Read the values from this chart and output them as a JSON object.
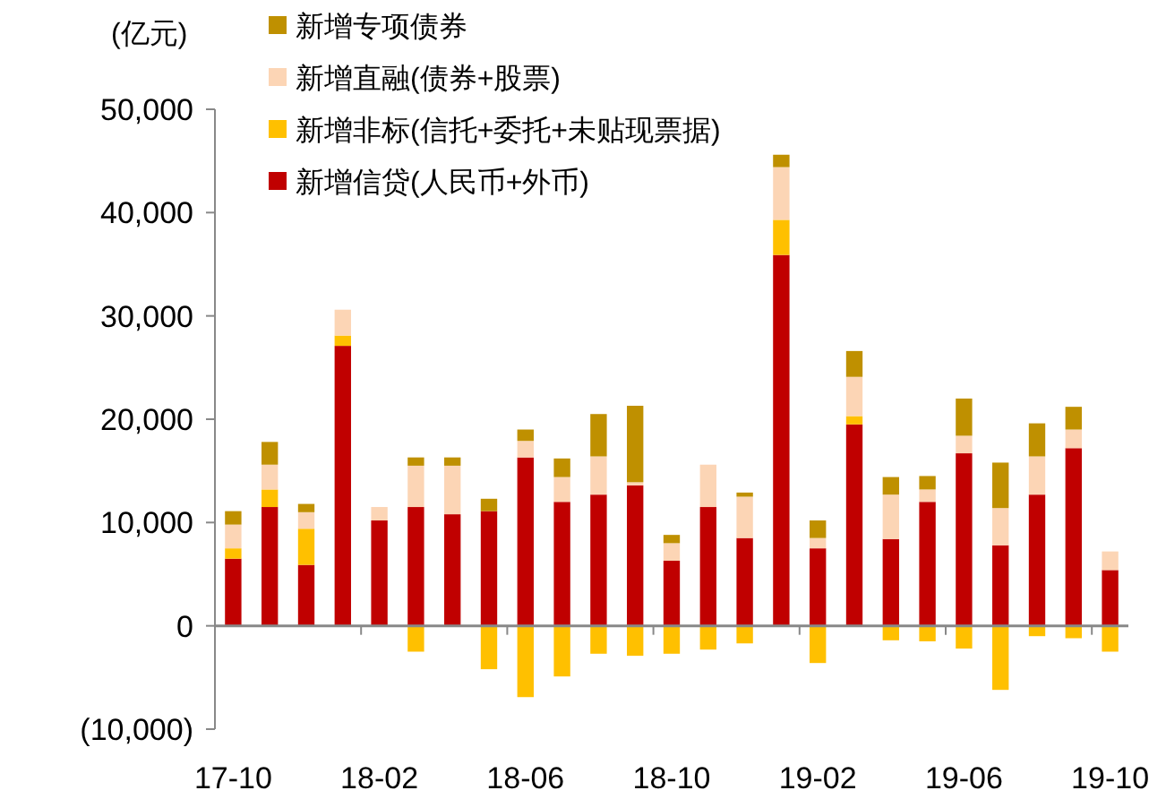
{
  "chart_data": {
    "type": "bar",
    "stacked": true,
    "ylabel": "(亿元)",
    "legend": "top left",
    "categories": [
      "17-10",
      null,
      null,
      null,
      "18-02",
      null,
      null,
      null,
      "18-06",
      null,
      null,
      null,
      "18-10",
      null,
      null,
      null,
      "19-02",
      null,
      null,
      null,
      "19-06",
      null,
      null,
      null,
      "19-10"
    ],
    "ylim": [
      -10000,
      50000
    ],
    "yticks": [
      {
        "value": -10000,
        "label": "(10,000)"
      },
      0,
      {
        "value": 10000,
        "label": "10,000"
      },
      {
        "value": 20000,
        "label": "20,000"
      },
      {
        "value": 30000,
        "label": "30,000"
      },
      {
        "value": 40000,
        "label": "40,000"
      },
      {
        "value": 50000,
        "label": "50,000"
      }
    ],
    "series": [
      {
        "name": "新增信贷(人民币+外币)",
        "color": "#c00000",
        "values": [
          6500,
          11500,
          5900,
          27100,
          10200,
          11500,
          10800,
          11100,
          16300,
          12000,
          12700,
          13600,
          6300,
          11500,
          8500,
          35900,
          7500,
          19500,
          8400,
          12000,
          16700,
          7800,
          12700,
          17200,
          5400
        ]
      },
      {
        "name": "新增非标(信托+委托+未贴现票据)",
        "color": "#ffc000",
        "values": [
          1000,
          1700,
          3500,
          1000,
          0,
          -2500,
          0,
          -4200,
          -6900,
          -4900,
          -2700,
          -2900,
          -2700,
          -2300,
          -1700,
          3400,
          -3600,
          800,
          -1400,
          -1500,
          -2200,
          -6200,
          -1000,
          -1200,
          -2500
        ]
      },
      {
        "name": "新增直融(债券+股票)",
        "color": "#fcd5b5",
        "values": [
          2300,
          2400,
          1600,
          2500,
          1300,
          4000,
          4700,
          0,
          1600,
          2400,
          3700,
          300,
          1700,
          4100,
          4000,
          5100,
          1000,
          3800,
          4300,
          1200,
          1700,
          3600,
          3700,
          1800,
          1800
        ]
      },
      {
        "name": "新增专项债券",
        "color": "#bf9000",
        "values": [
          1300,
          2200,
          800,
          0,
          0,
          800,
          800,
          1200,
          1100,
          1800,
          4100,
          7400,
          800,
          0,
          400,
          1200,
          1700,
          2500,
          1700,
          1300,
          3600,
          4400,
          3200,
          2200,
          0
        ]
      }
    ]
  }
}
